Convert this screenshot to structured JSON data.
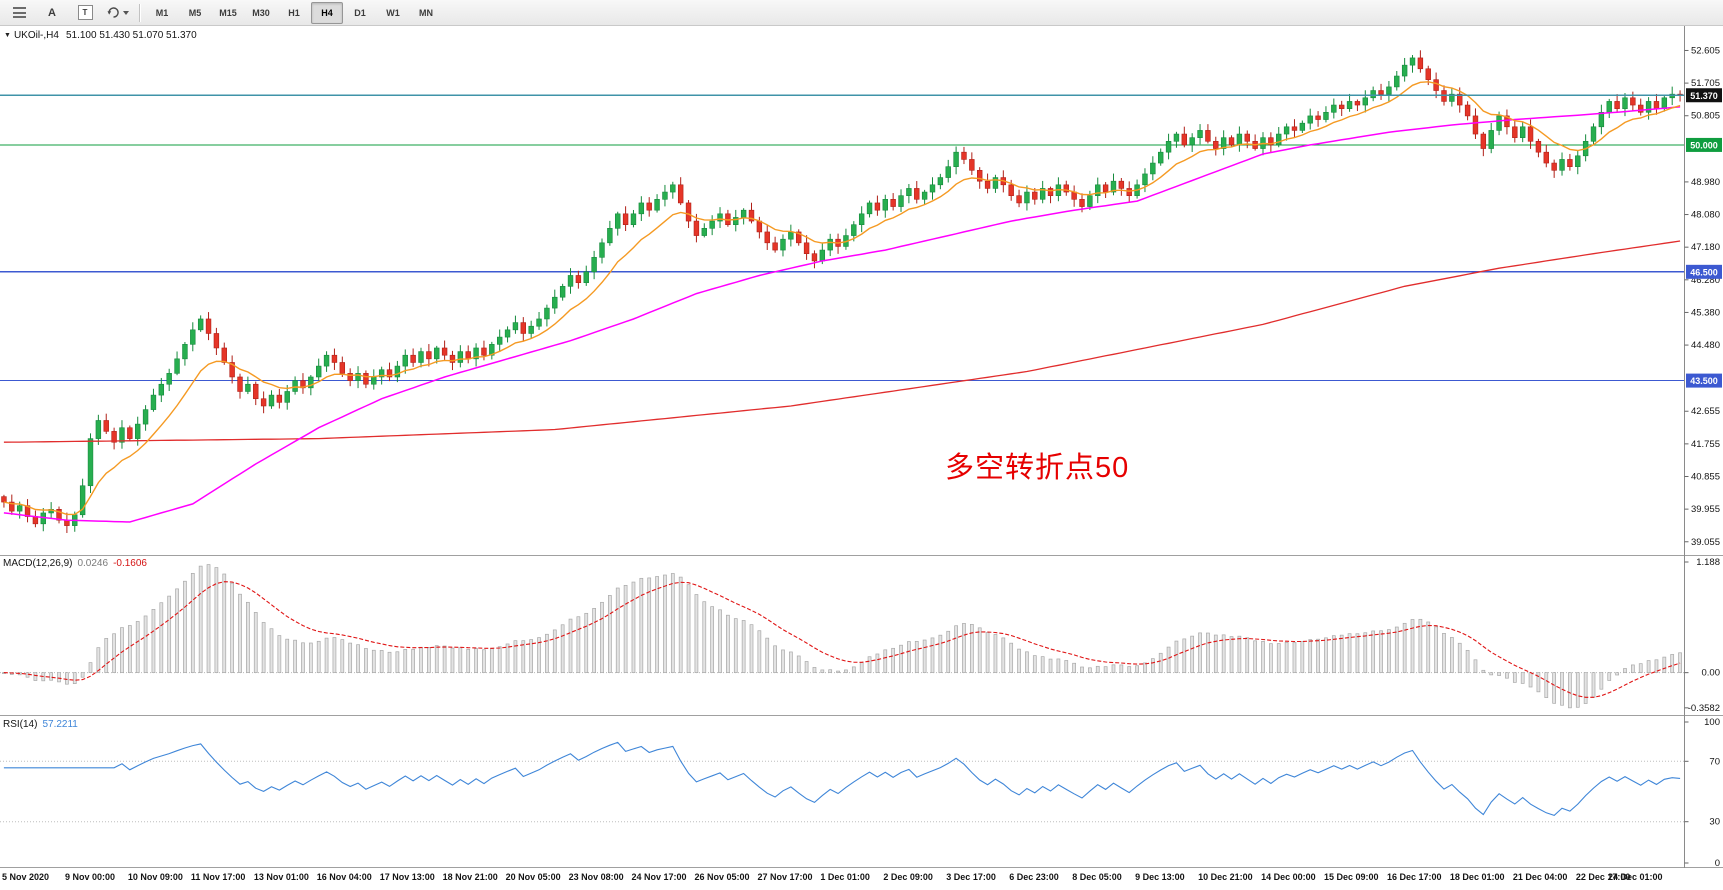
{
  "toolbar": {
    "tools": {
      "a": "A",
      "t": "T"
    },
    "timeframes": [
      "M1",
      "M5",
      "M15",
      "M30",
      "H1",
      "H4",
      "D1",
      "W1",
      "MN"
    ],
    "active_timeframe": "H4"
  },
  "header": {
    "symbol": "UKOil-,H4",
    "ohlc": "51.100 51.430 51.070 51.370"
  },
  "annotation": {
    "text": "多空转折点50",
    "color": "#e60000"
  },
  "price_axis": {
    "min": 38.69,
    "max": 53.28,
    "tick_labels": [
      "52.605",
      "51.705",
      "50.805",
      "48.980",
      "48.080",
      "47.180",
      "46.280",
      "45.380",
      "44.480",
      "42.655",
      "41.755",
      "40.855",
      "39.955",
      "39.055"
    ]
  },
  "levels": {
    "bid": {
      "price": 51.37,
      "label": "51.370",
      "line_color": "#3f93a8",
      "badge_color": "#111111"
    },
    "hlines": [
      {
        "price": 50.0,
        "label": "50.000",
        "line_color": "#0f9d3f",
        "badge_color": "#0f9d3f"
      },
      {
        "price": 46.5,
        "label": "46.500",
        "line_color": "#3c59d1",
        "badge_color": "#3c59d1"
      },
      {
        "price": 43.5,
        "label": "43.500",
        "line_color": "#3c59d1",
        "badge_color": "#3c59d1"
      }
    ]
  },
  "indicators": {
    "macd": {
      "label": "MACD(12,26,9)",
      "value1": "0.0246",
      "value2": "-0.1606",
      "scale_top": "1.188",
      "scale_zero": "0.00",
      "scale_bottom": "-0.3582",
      "histogram_fill": "#e3e3e3",
      "histogram_stroke": "#a8a8a8",
      "signal_color": "#e01515",
      "params": {
        "fast": 12,
        "slow": 26,
        "signal": 9
      }
    },
    "rsi": {
      "label": "RSI(14)",
      "value": "57.2211",
      "scale": [
        "100",
        "70",
        "30",
        "0"
      ],
      "levels": [
        70,
        30
      ],
      "line_color": "#3f86d8",
      "period": 14
    }
  },
  "chart_data": {
    "type": "candlestick",
    "symbol": "UKOil-",
    "timeframe": "H4",
    "first_open": 40.3,
    "closes": [
      40.15,
      39.9,
      40.05,
      39.75,
      39.55,
      39.85,
      39.95,
      39.65,
      39.5,
      39.8,
      40.6,
      41.9,
      42.4,
      42.1,
      41.8,
      42.2,
      41.9,
      42.3,
      42.7,
      43.1,
      43.4,
      43.7,
      44.1,
      44.5,
      44.9,
      45.2,
      44.8,
      44.4,
      44.0,
      43.6,
      43.2,
      43.4,
      43.0,
      42.8,
      43.1,
      42.9,
      43.2,
      43.5,
      43.3,
      43.6,
      43.9,
      44.2,
      44.0,
      43.7,
      43.5,
      43.7,
      43.4,
      43.6,
      43.8,
      43.6,
      43.9,
      44.2,
      44.0,
      44.3,
      44.1,
      44.4,
      44.2,
      44.0,
      44.3,
      44.1,
      44.4,
      44.2,
      44.5,
      44.7,
      44.9,
      45.1,
      44.8,
      45.0,
      45.2,
      45.5,
      45.8,
      46.1,
      46.4,
      46.2,
      46.5,
      46.9,
      47.3,
      47.7,
      48.1,
      47.8,
      48.1,
      48.4,
      48.2,
      48.5,
      48.7,
      48.9,
      48.4,
      47.9,
      47.5,
      47.7,
      47.9,
      48.1,
      47.8,
      48.0,
      48.2,
      47.9,
      47.6,
      47.3,
      47.1,
      47.4,
      47.6,
      47.3,
      47.0,
      46.8,
      47.1,
      47.4,
      47.2,
      47.5,
      47.8,
      48.1,
      48.4,
      48.2,
      48.5,
      48.3,
      48.6,
      48.8,
      48.5,
      48.7,
      48.9,
      49.1,
      49.4,
      49.8,
      49.6,
      49.3,
      49.0,
      48.8,
      49.1,
      48.9,
      48.6,
      48.4,
      48.7,
      48.5,
      48.8,
      48.6,
      48.9,
      48.7,
      48.5,
      48.3,
      48.6,
      48.9,
      48.7,
      49.0,
      48.8,
      48.6,
      48.9,
      49.2,
      49.5,
      49.8,
      50.1,
      50.3,
      50.0,
      50.2,
      50.4,
      50.1,
      49.9,
      50.2,
      50.0,
      50.3,
      50.1,
      49.9,
      50.2,
      50.0,
      50.3,
      50.5,
      50.4,
      50.6,
      50.8,
      50.7,
      50.9,
      51.1,
      51.0,
      51.2,
      51.1,
      51.3,
      51.5,
      51.4,
      51.6,
      51.9,
      52.2,
      52.4,
      52.1,
      51.8,
      51.5,
      51.2,
      51.4,
      51.1,
      50.8,
      50.3,
      49.9,
      50.4,
      50.8,
      50.5,
      50.2,
      50.5,
      50.1,
      49.8,
      49.5,
      49.3,
      49.6,
      49.4,
      49.7,
      50.1,
      50.5,
      50.9,
      51.2,
      51.0,
      51.3,
      51.1,
      50.9,
      51.2,
      51.0,
      51.3,
      51.4,
      51.37
    ],
    "moving_averages": {
      "fast": {
        "color": "#f59a23",
        "period": 10
      },
      "mid": {
        "color": "#ff00ff",
        "anchors": [
          [
            0,
            39.85
          ],
          [
            8,
            39.65
          ],
          [
            16,
            39.6
          ],
          [
            24,
            40.1
          ],
          [
            32,
            41.2
          ],
          [
            40,
            42.2
          ],
          [
            48,
            43.0
          ],
          [
            56,
            43.6
          ],
          [
            64,
            44.1
          ],
          [
            72,
            44.6
          ],
          [
            80,
            45.2
          ],
          [
            88,
            45.9
          ],
          [
            96,
            46.4
          ],
          [
            104,
            46.8
          ],
          [
            112,
            47.1
          ],
          [
            120,
            47.5
          ],
          [
            128,
            47.9
          ],
          [
            136,
            48.2
          ],
          [
            144,
            48.45
          ],
          [
            152,
            49.1
          ],
          [
            160,
            49.75
          ],
          [
            166,
            50.0
          ],
          [
            176,
            50.35
          ],
          [
            184,
            50.55
          ],
          [
            192,
            50.7
          ],
          [
            200,
            50.82
          ],
          [
            206,
            50.92
          ],
          [
            213,
            51.05
          ]
        ]
      },
      "slow": {
        "color": "#e12d2d",
        "anchors": [
          [
            0,
            41.8
          ],
          [
            40,
            41.9
          ],
          [
            70,
            42.15
          ],
          [
            100,
            42.8
          ],
          [
            130,
            43.75
          ],
          [
            160,
            45.05
          ],
          [
            178,
            46.1
          ],
          [
            190,
            46.6
          ],
          [
            202,
            47.0
          ],
          [
            213,
            47.35
          ]
        ]
      }
    },
    "time_labels": [
      "5 Nov 2020",
      "9 Nov 00:00",
      "10 Nov 09:00",
      "11 Nov 17:00",
      "13 Nov 01:00",
      "16 Nov 04:00",
      "17 Nov 13:00",
      "18 Nov 21:00",
      "20 Nov 05:00",
      "23 Nov 08:00",
      "24 Nov 17:00",
      "26 Nov 05:00",
      "27 Nov 17:00",
      "1 Dec 01:00",
      "2 Dec 09:00",
      "3 Dec 17:00",
      "6 Dec 23:00",
      "8 Dec 05:00",
      "9 Dec 13:00",
      "10 Dec 21:00",
      "14 Dec 00:00",
      "15 Dec 09:00",
      "16 Dec 17:00",
      "18 Dec 01:00",
      "21 Dec 04:00",
      "22 Dec 17:00",
      "24 Dec 01:00"
    ]
  }
}
